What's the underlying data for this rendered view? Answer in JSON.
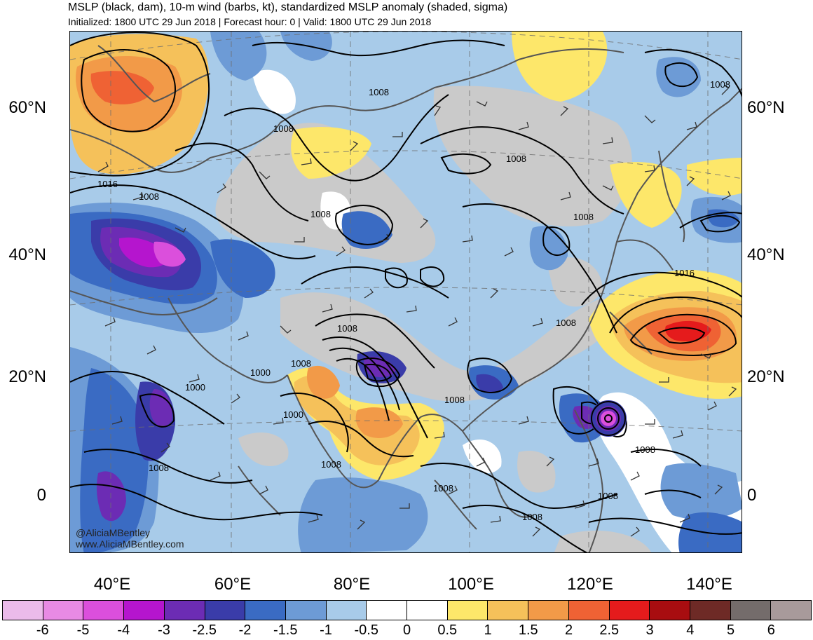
{
  "header": {
    "title": "MSLP (black, dam), 10-m wind (barbs, kt), standardized MSLP anomaly (shaded, sigma)",
    "subtitle": "Initialized: 1800 UTC 29 Jun 2018 | Forecast hour: 0 | Valid: 1800 UTC 29 Jun 2018"
  },
  "axes": {
    "lat_labels": [
      "60°N",
      "40°N",
      "20°N",
      "0"
    ],
    "lon_labels": [
      "40°E",
      "60°E",
      "80°E",
      "100°E",
      "120°E",
      "140°E"
    ]
  },
  "contour_labels": [
    "1008",
    "1008",
    "1016",
    "1008",
    "1008",
    "1008",
    "1008",
    "1008",
    "1016",
    "1008",
    "1008",
    "1000",
    "1000",
    "1008",
    "1000",
    "1008",
    "1008",
    "1008",
    "1008",
    "1008",
    "1008",
    "1008",
    "1008"
  ],
  "credits": {
    "handle": "@AliciaMBentley",
    "site": "www.AliciaMBentley.com"
  },
  "colorbar": {
    "colors": [
      "#ebbbea",
      "#e88ae4",
      "#db4fdc",
      "#b515ce",
      "#6c2cb4",
      "#3a3ca9",
      "#3a6bc3",
      "#6d9bd6",
      "#a8cbe9",
      "#ffffff",
      "#ffffff",
      "#fde76a",
      "#f5c15a",
      "#f29a48",
      "#ef6234",
      "#e51b1c",
      "#a80d10",
      "#6e2a26",
      "#746c6b",
      "#a89a9b"
    ],
    "ticks": [
      "-6",
      "-5",
      "-4",
      "-3",
      "-2.5",
      "-2",
      "-1.5",
      "-1",
      "-0.5",
      "0",
      "0.5",
      "1",
      "1.5",
      "2",
      "2.5",
      "3",
      "4",
      "5",
      "6"
    ]
  }
}
